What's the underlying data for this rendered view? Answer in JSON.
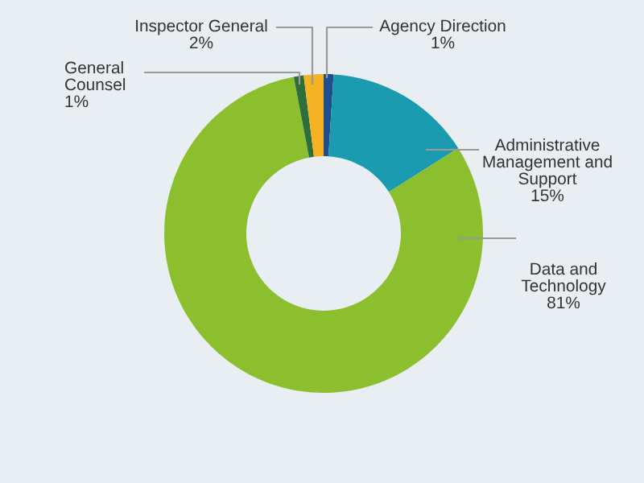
{
  "chart_data": {
    "type": "donut",
    "categories": [
      "Agency Direction",
      "Administrative Management and Support",
      "Data and Technology",
      "General Counsel",
      "Inspector General"
    ],
    "values": [
      1,
      15,
      81,
      1,
      2
    ],
    "value_labels": [
      "1%",
      "15%",
      "81%",
      "1%",
      "2%"
    ],
    "colors": [
      "#1f4e8c",
      "#1a9bb0",
      "#8cbf2e",
      "#2d6e3a",
      "#f5b324"
    ],
    "legend": false
  }
}
